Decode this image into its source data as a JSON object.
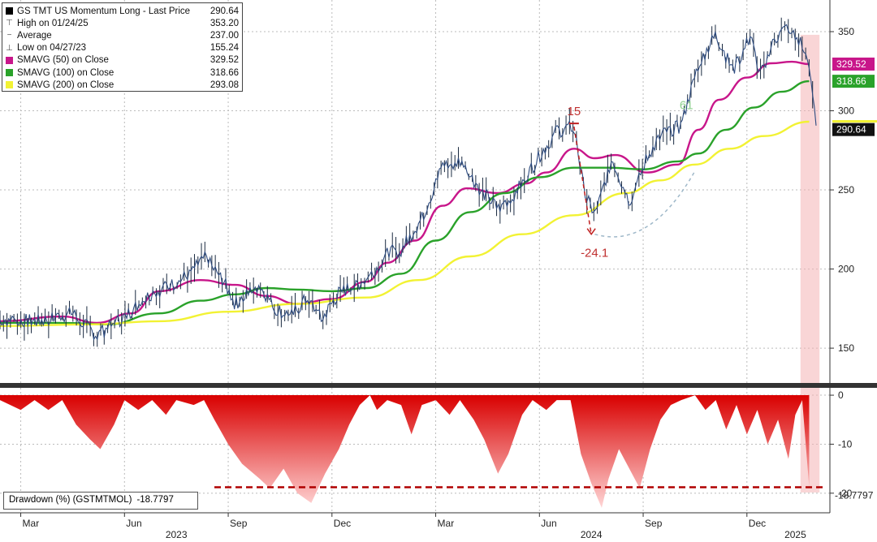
{
  "legend": {
    "items": [
      {
        "symbol": "square",
        "color": "#000000",
        "label": "GS TMT US Momentum Long - Last Price",
        "value": "290.64"
      },
      {
        "symbol": "high",
        "label": "High on 01/24/25",
        "value": "353.20"
      },
      {
        "symbol": "avg",
        "label": "Average",
        "value": "237.00"
      },
      {
        "symbol": "low",
        "label": "Low on 04/27/23",
        "value": "155.24"
      },
      {
        "symbol": "square",
        "color": "#c8168a",
        "label": "SMAVG (50)  on Close",
        "value": "329.52"
      },
      {
        "symbol": "square",
        "color": "#2aa22a",
        "label": "SMAVG (100)  on Close",
        "value": "318.66"
      },
      {
        "symbol": "square",
        "color": "#f2f233",
        "label": "SMAVG (200)  on Close",
        "value": "293.08"
      }
    ]
  },
  "drawdown_legend": {
    "label": "Drawdown (%) (GSTMTMOL)",
    "value": "-18.7797"
  },
  "annotations": {
    "peak_label": "15",
    "trough_label": "-24.1",
    "partial_label": "61"
  },
  "chart_data": [
    {
      "type": "line",
      "ylim": [
        128,
        370
      ],
      "y_ticks": [
        150,
        200,
        250,
        300,
        350
      ],
      "x_months": [
        "Mar",
        "Jun",
        "Sep",
        "Dec",
        "Mar",
        "Jun",
        "Sep",
        "Dec"
      ],
      "x_years": [
        "2023",
        "2024",
        "2025"
      ],
      "x_month_index": [
        0,
        3,
        6,
        9,
        12,
        15,
        18,
        21
      ],
      "x_range_months": [
        -0.6,
        23.4
      ],
      "price_keypoints": [
        [
          -0.6,
          168
        ],
        [
          0.5,
          167
        ],
        [
          1.5,
          172
        ],
        [
          2.2,
          158
        ],
        [
          3.0,
          170
        ],
        [
          3.8,
          185
        ],
        [
          4.6,
          192
        ],
        [
          5.3,
          207
        ],
        [
          5.8,
          195
        ],
        [
          6.2,
          178
        ],
        [
          6.9,
          190
        ],
        [
          7.3,
          176
        ],
        [
          7.8,
          170
        ],
        [
          8.3,
          182
        ],
        [
          8.7,
          168
        ],
        [
          9.2,
          185
        ],
        [
          10.0,
          193
        ],
        [
          10.6,
          210
        ],
        [
          11.0,
          212
        ],
        [
          11.6,
          232
        ],
        [
          12.2,
          265
        ],
        [
          12.7,
          268
        ],
        [
          13.3,
          250
        ],
        [
          13.8,
          238
        ],
        [
          14.3,
          248
        ],
        [
          14.9,
          268
        ],
        [
          15.5,
          287
        ],
        [
          16.0,
          290
        ],
        [
          16.3,
          248
        ],
        [
          16.6,
          233
        ],
        [
          17.1,
          270
        ],
        [
          17.6,
          242
        ],
        [
          18.1,
          270
        ],
        [
          18.6,
          287
        ],
        [
          19.1,
          290
        ],
        [
          19.6,
          330
        ],
        [
          20.1,
          348
        ],
        [
          20.6,
          325
        ],
        [
          21.1,
          347
        ],
        [
          21.4,
          322
        ],
        [
          21.8,
          345
        ],
        [
          22.1,
          352
        ],
        [
          22.5,
          345
        ],
        [
          22.8,
          330
        ],
        [
          23.0,
          290.64
        ]
      ],
      "series": [
        {
          "name": "SMAVG (50)  on Close",
          "color": "#c8168a",
          "values": [
            [
              -0.6,
              167
            ],
            [
              1.2,
              170
            ],
            [
              2.2,
              166
            ],
            [
              3.2,
              172
            ],
            [
              4.0,
              186
            ],
            [
              5.2,
              193
            ],
            [
              6.2,
              190
            ],
            [
              7.1,
              183
            ],
            [
              8.0,
              178
            ],
            [
              9.0,
              181
            ],
            [
              10.0,
              192
            ],
            [
              10.6,
              204
            ],
            [
              11.4,
              218
            ],
            [
              12.2,
              240
            ],
            [
              12.9,
              251
            ],
            [
              13.8,
              248
            ],
            [
              14.6,
              254
            ],
            [
              15.2,
              261
            ],
            [
              16.0,
              276
            ],
            [
              16.6,
              270
            ],
            [
              17.2,
              272
            ],
            [
              18.1,
              261
            ],
            [
              19.0,
              266
            ],
            [
              19.6,
              288
            ],
            [
              20.2,
              307
            ],
            [
              21.0,
              321
            ],
            [
              21.7,
              330
            ],
            [
              22.3,
              331
            ],
            [
              22.8,
              329.52
            ]
          ]
        },
        {
          "name": "SMAVG (100)  on Close",
          "color": "#2aa22a",
          "values": [
            [
              -0.6,
              166
            ],
            [
              1.2,
              166
            ],
            [
              2.5,
              165
            ],
            [
              4.0,
              172
            ],
            [
              5.2,
              180
            ],
            [
              6.2,
              184
            ],
            [
              7.1,
              188
            ],
            [
              8.0,
              187
            ],
            [
              9.0,
              186
            ],
            [
              10.0,
              188
            ],
            [
              11.0,
              197
            ],
            [
              12.0,
              218
            ],
            [
              13.0,
              236
            ],
            [
              14.0,
              248
            ],
            [
              15.0,
              258
            ],
            [
              16.0,
              264
            ],
            [
              17.0,
              264
            ],
            [
              18.0,
              263
            ],
            [
              19.0,
              268
            ],
            [
              19.6,
              273
            ],
            [
              20.4,
              288
            ],
            [
              21.2,
              302
            ],
            [
              22.0,
              312
            ],
            [
              22.8,
              318.66
            ]
          ]
        },
        {
          "name": "SMAVG (200)  on Close",
          "color": "#f2f233",
          "values": [
            [
              -0.6,
              164
            ],
            [
              2.0,
              165
            ],
            [
              4.0,
              167
            ],
            [
              6.0,
              173
            ],
            [
              8.0,
              178
            ],
            [
              10.0,
              182
            ],
            [
              11.5,
              193
            ],
            [
              13.0,
              208
            ],
            [
              14.5,
              222
            ],
            [
              16.0,
              234
            ],
            [
              17.5,
              248
            ],
            [
              18.5,
              256
            ],
            [
              19.5,
              266
            ],
            [
              20.5,
              276
            ],
            [
              21.5,
              284
            ],
            [
              22.8,
              293.08
            ]
          ]
        }
      ]
    },
    {
      "type": "area",
      "name": "Drawdown (%) (GSTMTMOL)",
      "ylim": [
        -24,
        1.5
      ],
      "y_ticks": [
        0,
        -10,
        -20
      ],
      "reference_level": -18.7797,
      "reference_tick": "-18.7797",
      "values": [
        [
          -0.6,
          -1
        ],
        [
          0.0,
          -3
        ],
        [
          0.4,
          -1
        ],
        [
          0.8,
          -3
        ],
        [
          1.2,
          -1
        ],
        [
          1.6,
          -6
        ],
        [
          2.0,
          -9
        ],
        [
          2.3,
          -11
        ],
        [
          2.7,
          -6
        ],
        [
          3.0,
          -1
        ],
        [
          3.4,
          -3
        ],
        [
          3.8,
          -1
        ],
        [
          4.2,
          -4
        ],
        [
          4.5,
          -1
        ],
        [
          5.0,
          -2
        ],
        [
          5.3,
          -1
        ],
        [
          5.6,
          -5
        ],
        [
          6.0,
          -10
        ],
        [
          6.4,
          -14
        ],
        [
          6.9,
          -17
        ],
        [
          7.2,
          -19
        ],
        [
          7.6,
          -15
        ],
        [
          8.0,
          -20
        ],
        [
          8.4,
          -22
        ],
        [
          8.8,
          -16
        ],
        [
          9.2,
          -11
        ],
        [
          9.5,
          -6
        ],
        [
          9.8,
          -2
        ],
        [
          10.1,
          0
        ],
        [
          10.3,
          -3
        ],
        [
          10.6,
          -1
        ],
        [
          11.0,
          -2
        ],
        [
          11.3,
          -8
        ],
        [
          11.6,
          -2
        ],
        [
          12.0,
          -1
        ],
        [
          12.4,
          -4
        ],
        [
          12.7,
          -1
        ],
        [
          13.1,
          -5
        ],
        [
          13.4,
          -9
        ],
        [
          13.8,
          -16
        ],
        [
          14.1,
          -12
        ],
        [
          14.5,
          -4
        ],
        [
          14.8,
          -1
        ],
        [
          15.2,
          -3
        ],
        [
          15.5,
          -1
        ],
        [
          15.9,
          -1
        ],
        [
          16.2,
          -12
        ],
        [
          16.5,
          -18
        ],
        [
          16.8,
          -23
        ],
        [
          17.0,
          -17
        ],
        [
          17.3,
          -11
        ],
        [
          17.6,
          -15
        ],
        [
          17.9,
          -19
        ],
        [
          18.2,
          -11
        ],
        [
          18.5,
          -5
        ],
        [
          18.8,
          -2
        ],
        [
          19.1,
          -1
        ],
        [
          19.5,
          0
        ],
        [
          19.8,
          -3
        ],
        [
          20.1,
          -1
        ],
        [
          20.4,
          -7
        ],
        [
          20.7,
          -2
        ],
        [
          21.0,
          -8
        ],
        [
          21.3,
          -3
        ],
        [
          21.6,
          -10
        ],
        [
          21.9,
          -5
        ],
        [
          22.2,
          -13
        ],
        [
          22.4,
          -4
        ],
        [
          22.6,
          -1
        ],
        [
          22.8,
          -18.7797
        ]
      ]
    }
  ]
}
